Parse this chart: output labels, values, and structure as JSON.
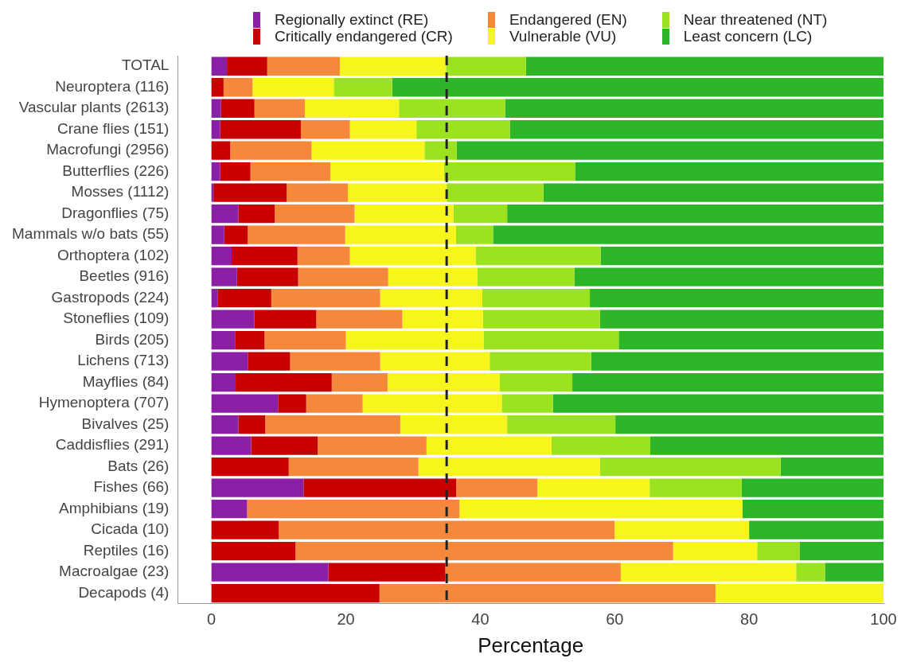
{
  "chart_data": {
    "type": "bar",
    "orientation": "horizontal",
    "stacked": true,
    "xlabel": "Percentage",
    "categories": [
      "TOTAL",
      "Neuroptera (116)",
      "Vascular plants (2613)",
      "Crane flies (151)",
      "Macrofungi (2956)",
      "Butterflies (226)",
      "Mosses (1112)",
      "Dragonflies (75)",
      "Mammals w/o bats (55)",
      "Orthoptera (102)",
      "Beetles (916)",
      "Gastropods (224)",
      "Stoneflies (109)",
      "Birds (205)",
      "Lichens (713)",
      "Mayflies (84)",
      "Hymenoptera (707)",
      "Bivalves (25)",
      "Caddisflies (291)",
      "Bats (26)",
      "Fishes (66)",
      "Amphibians (19)",
      "Cicada (10)",
      "Reptiles (16)",
      "Macroalgae (23)",
      "Decapods (4)"
    ],
    "series": [
      {
        "name": "Regionally extinct (RE)",
        "color": "#8b1fa5",
        "values": [
          2.3,
          0,
          1.4,
          1.3,
          0,
          1.3,
          0.3,
          4.0,
          1.9,
          3.0,
          3.8,
          0.9,
          6.4,
          3.5,
          5.4,
          3.6,
          9.9,
          4.0,
          5.9,
          0,
          13.7,
          5.3,
          0,
          0,
          17.4,
          0
        ]
      },
      {
        "name": "Critically endangered (CR)",
        "color": "#c80000",
        "values": [
          6.0,
          1.8,
          5.0,
          12.0,
          2.8,
          4.5,
          10.9,
          5.4,
          3.5,
          9.8,
          9.1,
          8.0,
          9.2,
          4.4,
          6.3,
          14.3,
          4.2,
          4.0,
          9.9,
          11.5,
          22.7,
          0,
          10,
          12.5,
          17.4,
          25
        ]
      },
      {
        "name": "Endangered (EN)",
        "color": "#f5883a",
        "values": [
          10.8,
          4.3,
          7.5,
          7.3,
          12.1,
          11.9,
          9.1,
          11.9,
          14.5,
          7.8,
          13.4,
          16.2,
          12.8,
          12.1,
          13.4,
          8.3,
          8.4,
          20.1,
          16.2,
          19.3,
          12.1,
          31.6,
          50,
          56.2,
          26.1,
          50
        ]
      },
      {
        "name": "Vulnerable (VU)",
        "color": "#f6f51c",
        "values": [
          15.8,
          12.1,
          14.0,
          9.9,
          16.8,
          16.9,
          14.7,
          14.7,
          16.5,
          18.7,
          13.3,
          15.2,
          12.0,
          20.5,
          16.3,
          16.7,
          20.7,
          15.9,
          18.6,
          27.0,
          16.7,
          42.1,
          20,
          12.5,
          26.1,
          25
        ]
      },
      {
        "name": "Near threatened (NT)",
        "color": "#9be21f",
        "values": [
          11.9,
          8.7,
          15.8,
          13.9,
          4.8,
          19.5,
          14.4,
          8.0,
          5.5,
          18.6,
          14.4,
          16.0,
          17.4,
          20.1,
          15.1,
          10.8,
          7.6,
          16.1,
          14.7,
          26.9,
          13.7,
          0,
          0,
          6.3,
          4.3,
          0
        ]
      },
      {
        "name": "Least concern (LC)",
        "color": "#2db528",
        "values": [
          53.2,
          73.1,
          56.3,
          55.6,
          63.5,
          45.9,
          50.6,
          56.0,
          58.1,
          42.1,
          46.0,
          43.7,
          42.2,
          39.4,
          43.5,
          46.3,
          49.2,
          39.9,
          34.7,
          15.3,
          21.1,
          21.0,
          20,
          12.5,
          8.7,
          0
        ]
      }
    ],
    "xlim": [
      -5,
      100
    ],
    "xticks": [
      0,
      20,
      40,
      60,
      80,
      100
    ],
    "ref_lines": [
      {
        "axis": "x",
        "value": 35,
        "color": "#222222",
        "line_style": "dashed"
      }
    ],
    "legend": "top",
    "grid": false
  }
}
